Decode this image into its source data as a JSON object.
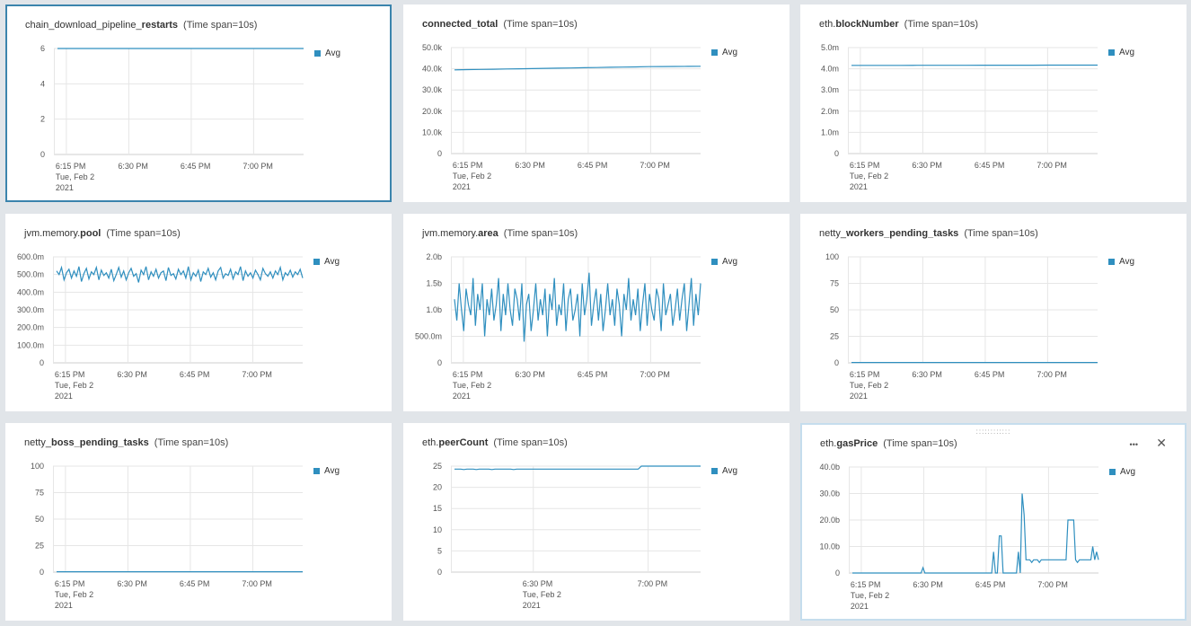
{
  "legend_label": "Avg",
  "colors": {
    "series": "#2f8fbf",
    "selected_border": "#3b84ad",
    "hover_border": "#c5dded"
  },
  "panels": [
    {
      "title_pre": "chain_download_pipeline_",
      "title_bold": "restarts",
      "title_span": "(Time span=10s)",
      "selected": true,
      "chart_data": {
        "type": "line",
        "yticks": [
          "6",
          "4",
          "2",
          "0"
        ],
        "ylim": [
          0,
          6
        ],
        "xticks": [
          "6:15 PM",
          "6:30 PM",
          "6:45 PM",
          "7:00 PM"
        ],
        "xsub": [
          "Tue, Feb 2",
          "2021"
        ],
        "series": [
          {
            "name": "Avg",
            "values": [
              6,
              6,
              6,
              6,
              6,
              6,
              6,
              6,
              6,
              6,
              6,
              6,
              6,
              6,
              6,
              6,
              6,
              6,
              6,
              6,
              6,
              6,
              6,
              6,
              6,
              6,
              6,
              6,
              6,
              6
            ]
          }
        ]
      }
    },
    {
      "title_pre": "",
      "title_bold": "connected_total",
      "title_span": "(Time span=10s)",
      "chart_data": {
        "type": "line",
        "yticks": [
          "50.0k",
          "40.0k",
          "30.0k",
          "20.0k",
          "10.0k",
          "0"
        ],
        "ylim": [
          0,
          50000
        ],
        "xticks": [
          "6:15 PM",
          "6:30 PM",
          "6:45 PM",
          "7:00 PM"
        ],
        "xsub": [
          "Tue, Feb 2",
          "2021"
        ],
        "series": [
          {
            "name": "Avg",
            "values": [
              39500,
              39600,
              39700,
              39800,
              39900,
              40000,
              40100,
              40200,
              40300,
              40400,
              40500,
              40600,
              40700,
              40800,
              40900,
              41000,
              41050,
              41100,
              41150,
              41200
            ]
          }
        ]
      }
    },
    {
      "title_pre": "eth.",
      "title_bold": "blockNumber",
      "title_span": "(Time span=10s)",
      "chart_data": {
        "type": "line",
        "yticks": [
          "5.0m",
          "4.0m",
          "3.0m",
          "2.0m",
          "1.0m",
          "0"
        ],
        "ylim": [
          0,
          5000000
        ],
        "xticks": [
          "6:15 PM",
          "6:30 PM",
          "6:45 PM",
          "7:00 PM"
        ],
        "xsub": [
          "Tue, Feb 2",
          "2021"
        ],
        "series": [
          {
            "name": "Avg",
            "values": [
              4160000,
              4161000,
              4162000,
              4163000,
              4164000,
              4165000,
              4166000,
              4167000,
              4168000,
              4169000,
              4170000,
              4171000,
              4172000,
              4173000,
              4174000,
              4175000
            ]
          }
        ]
      }
    },
    {
      "title_pre": "jvm.memory.",
      "title_bold": "pool",
      "title_span": "(Time span=10s)",
      "chart_data": {
        "type": "line",
        "yticks": [
          "600.0m",
          "500.0m",
          "400.0m",
          "300.0m",
          "200.0m",
          "100.0m",
          "0"
        ],
        "ylim": [
          0,
          600000000
        ],
        "xticks": [
          "6:15 PM",
          "6:30 PM",
          "6:45 PM",
          "7:00 PM"
        ],
        "xsub": [
          "Tue, Feb 2",
          "2021"
        ],
        "series": [
          {
            "name": "Avg",
            "values": [
              520,
              500,
              540,
              470,
              510,
              530,
              480,
              520,
              490,
              545,
              460,
              505,
              535,
              475,
              515,
              500,
              540,
              470,
              525,
              495,
              510,
              480,
              530,
              465,
              500,
              540,
              485,
              520,
              470,
              510,
              535,
              490,
              505,
              455,
              525,
              500,
              545,
              470,
              515,
              490,
              530,
              480,
              510,
              520,
              465,
              540,
              495,
              505,
              475,
              530,
              500,
              520,
              480,
              545,
              470,
              510,
              490,
              525,
              460,
              515,
              500,
              535,
              485,
              510,
              470,
              520,
              540,
              480,
              505,
              495,
              530,
              475,
              515,
              500,
              545,
              465,
              520,
              490,
              510,
              480,
              525,
              500,
              470,
              535,
              505,
              490,
              515,
              480,
              520,
              500,
              540,
              470,
              510,
              495,
              525,
              485,
              515,
              500,
              530,
              480
            ]
          }
        ]
      }
    },
    {
      "title_pre": "jvm.memory.",
      "title_bold": "area",
      "title_span": "(Time span=10s)",
      "chart_data": {
        "type": "line",
        "yticks": [
          "2.0b",
          "1.5b",
          "1.0b",
          "500.0m",
          "0"
        ],
        "ylim": [
          0,
          2000000000
        ],
        "xticks": [
          "6:15 PM",
          "6:30 PM",
          "6:45 PM",
          "7:00 PM"
        ],
        "xsub": [
          "Tue, Feb 2",
          "2021"
        ],
        "series": [
          {
            "name": "Avg",
            "values": [
              1.2,
              0.8,
              1.5,
              1.0,
              0.6,
              1.4,
              1.1,
              0.9,
              1.6,
              0.7,
              1.3,
              1.0,
              1.5,
              0.5,
              1.2,
              0.9,
              1.4,
              0.8,
              1.1,
              1.6,
              0.6,
              1.3,
              0.9,
              1.5,
              1.0,
              0.7,
              1.4,
              1.2,
              0.8,
              1.5,
              0.4,
              1.1,
              1.3,
              0.6,
              1.0,
              1.5,
              0.8,
              1.2,
              0.9,
              1.4,
              0.5,
              1.3,
              1.0,
              1.6,
              0.7,
              1.1,
              0.9,
              1.5,
              0.6,
              1.2,
              1.4,
              0.8,
              1.0,
              1.3,
              0.5,
              1.5,
              0.9,
              1.2,
              1.7,
              0.7,
              1.1,
              1.4,
              0.8,
              1.3,
              0.6,
              1.0,
              1.5,
              0.9,
              1.2,
              0.7,
              1.4,
              1.1,
              0.5,
              1.3,
              1.0,
              1.6,
              0.8,
              1.2,
              0.9,
              1.4,
              0.6,
              1.1,
              1.5,
              0.7,
              1.3,
              1.0,
              0.8,
              1.4,
              1.2,
              0.6,
              1.5,
              0.9,
              1.1,
              1.3,
              0.7,
              1.0,
              1.4,
              0.8,
              1.2,
              1.5,
              0.6,
              1.1,
              1.6,
              0.7,
              1.3,
              0.9,
              1.5
            ]
          }
        ]
      }
    },
    {
      "title_pre": "netty_",
      "title_bold": "workers_pending_tasks",
      "title_span": "(Time span=10s)",
      "chart_data": {
        "type": "line",
        "yticks": [
          "100",
          "75",
          "50",
          "25",
          "0"
        ],
        "ylim": [
          0,
          100
        ],
        "xticks": [
          "6:15 PM",
          "6:30 PM",
          "6:45 PM",
          "7:00 PM"
        ],
        "xsub": [
          "Tue, Feb 2",
          "2021"
        ],
        "series": [
          {
            "name": "Avg",
            "values": [
              0.3,
              0.3,
              0.3,
              0.3,
              0.3,
              0.3,
              0.3,
              0.3,
              0.3,
              0.3,
              0.3,
              0.3,
              0.3,
              0.3,
              0.3,
              0.3,
              0.3,
              0.3,
              0.3,
              0.3,
              0.3,
              0.3,
              0.3,
              0.3,
              0.3,
              0.3,
              0.3,
              0.3,
              0.3,
              0.3
            ]
          }
        ]
      }
    },
    {
      "title_pre": "netty_",
      "title_bold": "boss_pending_tasks",
      "title_span": "(Time span=10s)",
      "chart_data": {
        "type": "line",
        "yticks": [
          "100",
          "75",
          "50",
          "25",
          "0"
        ],
        "ylim": [
          0,
          100
        ],
        "xticks": [
          "6:15 PM",
          "6:30 PM",
          "6:45 PM",
          "7:00 PM"
        ],
        "xsub": [
          "Tue, Feb 2",
          "2021"
        ],
        "series": [
          {
            "name": "Avg",
            "values": [
              0.3,
              0.3,
              0.3,
              0.3,
              0.3,
              0.3,
              0.3,
              0.3,
              0.3,
              0.3,
              0.3,
              0.3,
              0.3,
              0.3,
              0.3,
              0.3,
              0.3,
              0.3,
              0.3,
              0.3,
              0.3,
              0.3,
              0.3,
              0.3,
              0.3,
              0.3,
              0.3,
              0.3,
              0.3,
              0.3
            ]
          }
        ]
      }
    },
    {
      "title_pre": "eth.",
      "title_bold": "peerCount",
      "title_span": "(Time span=10s)",
      "chart_data": {
        "type": "line",
        "yticks": [
          "25",
          "20",
          "15",
          "10",
          "5",
          "0"
        ],
        "ylim": [
          0,
          25
        ],
        "xticks": [
          "6:30 PM",
          "7:00 PM"
        ],
        "xtick_offsets": [
          0.33,
          0.79
        ],
        "xsub": [
          "Tue, Feb 2",
          "2021"
        ],
        "xsub_under": 0,
        "series": [
          {
            "name": "Avg",
            "values": [
              24.3,
              24.3,
              24.3,
              24.2,
              24.3,
              24.3,
              24.3,
              24.2,
              24.3,
              24.3,
              24.3,
              24.3,
              24.2,
              24.3,
              24.3,
              24.3,
              24.3,
              24.3,
              24.3,
              24.2,
              24.3,
              24.3,
              24.3,
              24.3,
              24.3,
              24.3,
              24.3,
              24.3,
              24.3,
              24.3,
              24.3,
              24.3,
              24.3,
              24.3,
              24.3,
              24.3,
              24.3,
              24.3,
              24.3,
              24.3,
              24.3,
              24.3,
              24.3,
              24.3,
              24.3,
              24.3,
              24.3,
              24.3,
              24.3,
              24.3,
              24.3,
              24.3,
              24.3,
              24.3,
              24.3,
              24.3,
              24.3,
              24.3,
              24.3,
              24.3,
              25,
              25,
              25,
              25,
              25,
              25,
              25,
              25,
              25,
              25,
              25,
              25,
              25,
              25,
              25,
              25,
              25,
              25,
              25,
              25
            ]
          }
        ]
      }
    },
    {
      "title_pre": "eth.",
      "title_bold": "gasPrice",
      "title_span": "(Time span=10s)",
      "hover": true,
      "chart_data": {
        "type": "line",
        "yticks": [
          "40.0b",
          "30.0b",
          "20.0b",
          "10.0b",
          "0"
        ],
        "ylim": [
          0,
          40
        ],
        "xticks": [
          "6:15 PM",
          "6:30 PM",
          "6:45 PM",
          "7:00 PM"
        ],
        "xsub": [
          "Tue, Feb 2",
          "2021"
        ],
        "series": [
          {
            "name": "Avg",
            "values": [
              0,
              0,
              0,
              0,
              0,
              0,
              0,
              0,
              0,
              0,
              0,
              0,
              0,
              0,
              0,
              0,
              0,
              0,
              0,
              0,
              0,
              0,
              0,
              0,
              0,
              0,
              0,
              0,
              0,
              0,
              0,
              0,
              0,
              0,
              0,
              0,
              0,
              2,
              0,
              0,
              0,
              0,
              0,
              0,
              0,
              0,
              0,
              0,
              0,
              0,
              0,
              0,
              0,
              0,
              0,
              0,
              0,
              0,
              0,
              0,
              0,
              0,
              0,
              0,
              0,
              0,
              0,
              0,
              0,
              0,
              0,
              0,
              0,
              0,
              8,
              0,
              0,
              14,
              14,
              0,
              0,
              0,
              0,
              0,
              0,
              0,
              0,
              8,
              0,
              30,
              22,
              5,
              5,
              5,
              4,
              5,
              5,
              5,
              4,
              5,
              5,
              5,
              5,
              5,
              5,
              5,
              5,
              5,
              5,
              5,
              5,
              5,
              5,
              20,
              20,
              20,
              20,
              5,
              4,
              5,
              5,
              5,
              5,
              5,
              5,
              5,
              10,
              5,
              8,
              5
            ]
          }
        ]
      }
    }
  ]
}
